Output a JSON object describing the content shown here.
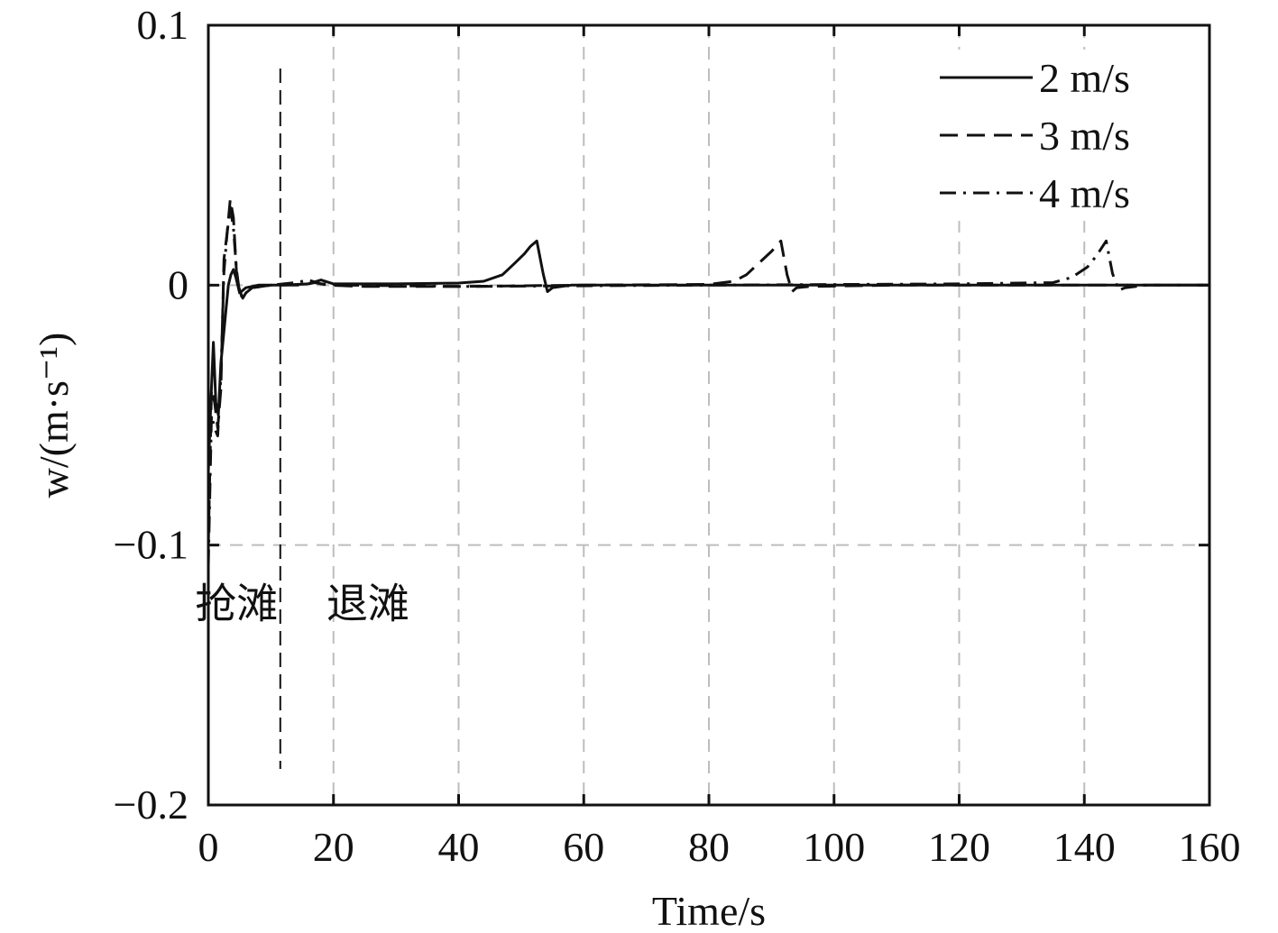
{
  "chart_data": {
    "type": "line",
    "xlabel": "Time/s",
    "ylabel": "w/(m·s⁻¹)",
    "xlim": [
      0,
      160
    ],
    "ylim": [
      -0.2,
      0.1
    ],
    "xticks": [
      0,
      20,
      40,
      60,
      80,
      100,
      120,
      140,
      160
    ],
    "xtick_labels": [
      "0",
      "20",
      "40",
      "60",
      "80",
      "100",
      "120",
      "140",
      "160"
    ],
    "yticks": [
      -0.2,
      -0.1,
      0,
      0.1
    ],
    "ytick_labels": [
      "−0.2",
      "−0.1",
      "0",
      "0.1"
    ],
    "grid": true,
    "legend_position": "top-right",
    "phase_divider_x": 11.5,
    "annotations": [
      {
        "text": "抢滩",
        "x": 4.5,
        "y": -0.128
      },
      {
        "text": "退滩",
        "x": 25.5,
        "y": -0.128
      }
    ],
    "series": [
      {
        "name": "2 m/s",
        "style": "solid",
        "x": [
          0,
          0.4,
          0.8,
          1.2,
          1.6,
          2,
          2.4,
          2.8,
          3.2,
          3.6,
          4,
          4.4,
          5,
          6,
          8,
          12,
          16,
          18,
          20,
          30,
          40,
          44,
          47,
          49,
          50.5,
          51.5,
          52.5,
          53.5,
          54.2,
          55,
          58,
          70,
          100,
          160
        ],
        "y": [
          -0.072,
          -0.045,
          -0.022,
          -0.045,
          -0.05,
          -0.03,
          -0.02,
          -0.01,
          0,
          0.004,
          0.006,
          0.003,
          -0.003,
          -0.001,
          0,
          0,
          0.0005,
          0.002,
          0.0005,
          0.0005,
          0.0008,
          0.0015,
          0.004,
          0.0085,
          0.012,
          0.015,
          0.017,
          0.0045,
          -0.0025,
          -0.001,
          0,
          0,
          0,
          0
        ]
      },
      {
        "name": "3 m/s",
        "style": "dashed",
        "x": [
          0,
          0.5,
          1,
          1.5,
          2,
          2.5,
          3,
          3.5,
          4,
          4.5,
          5,
          5.5,
          6,
          7,
          10,
          15,
          17,
          19,
          25,
          40,
          60,
          80,
          84,
          86,
          88,
          90,
          91.5,
          92.5,
          93.3,
          94,
          96,
          110,
          160
        ],
        "y": [
          -0.1,
          -0.04,
          -0.045,
          -0.055,
          -0.04,
          0.01,
          0.02,
          0.033,
          0.026,
          0.005,
          -0.002,
          -0.005,
          -0.003,
          -0.001,
          0,
          0,
          0.001,
          0,
          -0.0005,
          -0.0005,
          0,
          0.0003,
          0.0015,
          0.004,
          0.0085,
          0.013,
          0.017,
          0.004,
          -0.0025,
          -0.001,
          -0.0005,
          0,
          0
        ]
      },
      {
        "name": "4 m/s",
        "style": "dashdot",
        "x": [
          0,
          0.5,
          1,
          1.5,
          2,
          2.5,
          3,
          3.5,
          4,
          4.5,
          5,
          5.5,
          6,
          7,
          10,
          14,
          16,
          18,
          22,
          40,
          80,
          120,
          135,
          138,
          140.5,
          142,
          143.5,
          144.5,
          145.5,
          146.5,
          150,
          160
        ],
        "y": [
          -0.108,
          -0.05,
          -0.055,
          -0.058,
          -0.035,
          0.005,
          0.02,
          0.03,
          0.022,
          0.006,
          -0.003,
          -0.005,
          -0.003,
          -0.001,
          0,
          0.001,
          0.002,
          0.0005,
          0,
          -0.0005,
          0,
          0.0005,
          0.001,
          0.003,
          0.007,
          0.0115,
          0.017,
          0.0045,
          -0.002,
          -0.001,
          0,
          0
        ]
      }
    ]
  }
}
